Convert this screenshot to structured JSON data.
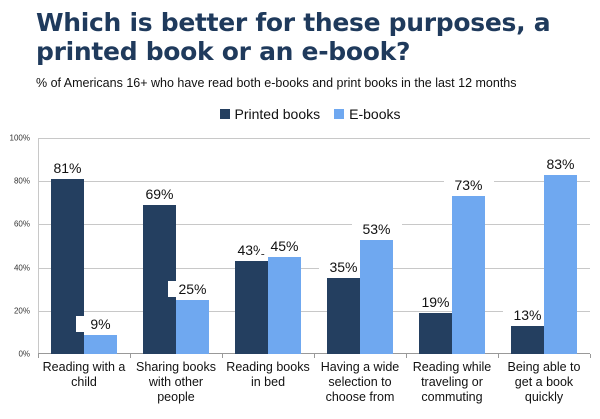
{
  "title": "Which is better for these purposes, a printed book or an e-book?",
  "subtitle": "% of Americans 16+ who have read both e-books and print books in the last 12 months",
  "colors": {
    "printed": "#243f60",
    "ebooks": "#6fa8f0",
    "title": "#1f3a5c"
  },
  "chart_data": {
    "type": "bar",
    "title": "Which is better for these purposes, a printed book or an e-book?",
    "subtitle": "% of Americans 16+ who have read both e-books and print books in the last 12 months",
    "categories": [
      "Reading with a child",
      "Sharing books with other people",
      "Reading books in bed",
      "Having a wide selection to choose from",
      "Reading while traveling or commuting",
      "Being able to get a book quickly"
    ],
    "series": [
      {
        "name": "Printed books",
        "color": "#243f60",
        "values": [
          81,
          69,
          43,
          35,
          19,
          13
        ]
      },
      {
        "name": "E-books",
        "color": "#6fa8f0",
        "values": [
          9,
          25,
          45,
          53,
          73,
          83
        ]
      }
    ],
    "data_labels": {
      "Printed books": [
        "81%",
        "69%",
        "43%",
        "35%",
        "19%",
        "13%"
      ],
      "E-books": [
        "9%",
        "25%",
        "45%",
        "53%",
        "73%",
        "83%"
      ]
    },
    "xlabel": "",
    "ylabel": "",
    "ylim": [
      0,
      100
    ],
    "yticks": [
      "0%",
      "20%",
      "40%",
      "60%",
      "80%",
      "100%"
    ],
    "grid": true,
    "legend_position": "top"
  },
  "legend": [
    {
      "label": "Printed books",
      "color": "#243f60"
    },
    {
      "label": "E-books",
      "color": "#6fa8f0"
    }
  ]
}
